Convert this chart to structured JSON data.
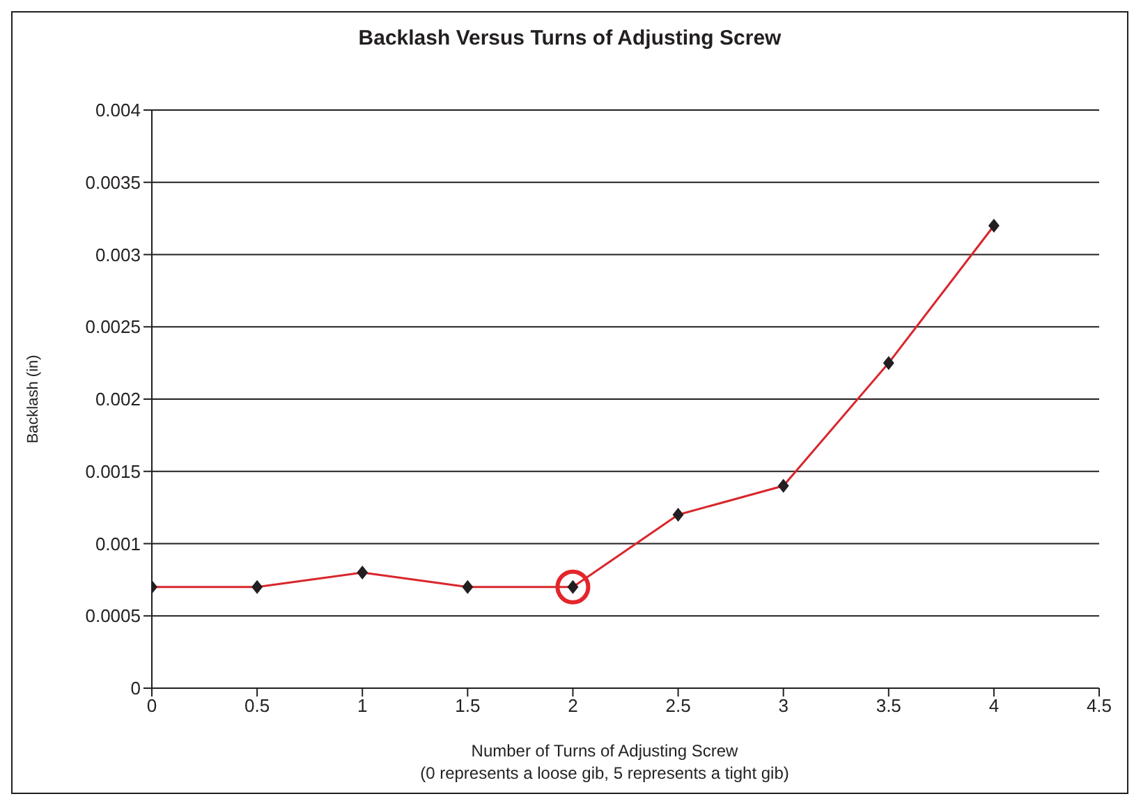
{
  "chart_data": {
    "type": "line",
    "title": "Backlash Versus Turns of Adjusting Screw",
    "xlabel": "Number of Turns of Adjusting Screw\n(0 represents a loose gib, 5 represents a tight gib)",
    "ylabel": "Backlash (in)",
    "x": [
      0,
      0.5,
      1,
      1.5,
      2,
      2.5,
      3,
      3.5,
      4
    ],
    "series": [
      {
        "color": "#d9262c",
        "values": [
          0.0007,
          0.0007,
          0.0008,
          0.0007,
          0.0007,
          0.0012,
          0.0014,
          0.00225,
          0.0032
        ]
      }
    ],
    "xlim": [
      0,
      4.5
    ],
    "xticks": [
      0,
      0.5,
      1,
      1.5,
      2,
      2.5,
      3,
      3.5,
      4,
      4.5
    ],
    "ylim": [
      0,
      0.004
    ],
    "yticks": [
      0,
      0.0005,
      0.001,
      0.0015,
      0.002,
      0.0025,
      0.003,
      0.0035,
      0.004
    ],
    "grid": "y",
    "marker": "diamond",
    "line_style": "solid",
    "legend": false
  }
}
